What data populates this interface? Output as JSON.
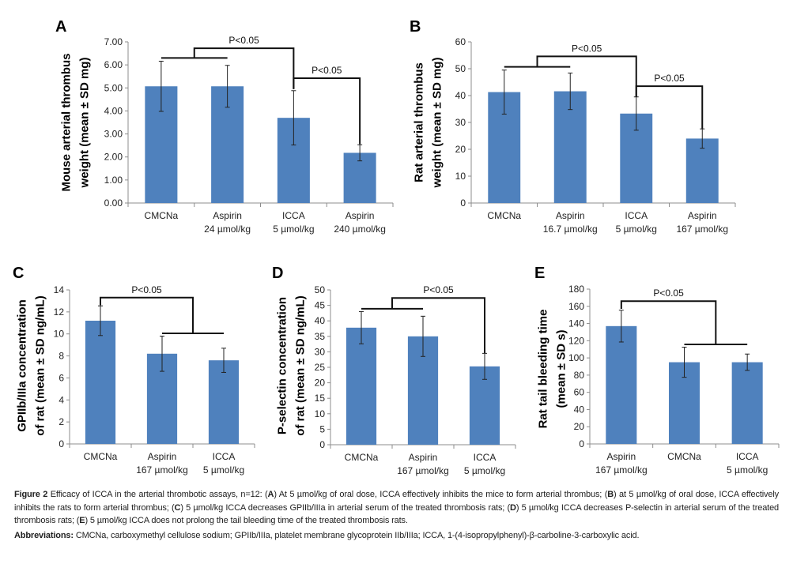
{
  "colors": {
    "bar": "#4f81bd",
    "axis": "#8c8c8c",
    "bracket": "#111111",
    "error": "#222222"
  },
  "chart_data": [
    {
      "panel": "A",
      "type": "bar",
      "ylabel": [
        "Mouse arterial thrombus",
        "weight (mean ± SD mg)"
      ],
      "categories": [
        [
          "CMCNa"
        ],
        [
          "Aspirin",
          "24 µmol/kg"
        ],
        [
          "ICCA",
          "5 µmol/kg"
        ],
        [
          "Aspirin",
          "240 µmol/kg"
        ]
      ],
      "values": [
        5.07,
        5.07,
        3.7,
        2.18
      ],
      "sd": [
        1.09,
        0.91,
        1.18,
        0.35
      ],
      "ylim": [
        0,
        7
      ],
      "yticks": [
        "0.00",
        "1.00",
        "2.00",
        "3.00",
        "4.00",
        "5.00",
        "6.00",
        "7.00"
      ],
      "ystep": 1,
      "brackets": [
        {
          "from": {
            "bars": [
              0,
              1
            ],
            "y": 6.3
          },
          "to": {
            "bars": [
              2
            ],
            "y": 4.95
          },
          "top": 6.72,
          "label": "P<0.05"
        },
        {
          "from": {
            "bars": [
              2
            ],
            "y": 4.95
          },
          "to": {
            "bars": [
              3
            ],
            "y": 2.55
          },
          "top": 5.42,
          "label": "P<0.05"
        }
      ]
    },
    {
      "panel": "B",
      "type": "bar",
      "ylabel": [
        "Rat arterial thrombus",
        "weight (mean ± SD mg)"
      ],
      "categories": [
        [
          "CMCNa"
        ],
        [
          "Aspirin",
          "16.7 µmol/kg"
        ],
        [
          "ICCA",
          "5 µmol/kg"
        ],
        [
          "Aspirin",
          "167 µmol/kg"
        ]
      ],
      "values": [
        41.3,
        41.6,
        33.3,
        24.0
      ],
      "sd": [
        8.2,
        6.8,
        6.2,
        3.6
      ],
      "ylim": [
        0,
        60
      ],
      "yticks": [
        "0",
        "10",
        "20",
        "30",
        "40",
        "50",
        "60"
      ],
      "ystep": 10,
      "brackets": [
        {
          "from": {
            "bars": [
              0,
              1
            ],
            "y": 50.7
          },
          "to": {
            "bars": [
              2
            ],
            "y": 39.6
          },
          "top": 54.6,
          "label": "P<0.05"
        },
        {
          "from": {
            "bars": [
              2
            ],
            "y": 39.6
          },
          "to": {
            "bars": [
              3
            ],
            "y": 27.7
          },
          "top": 43.5,
          "label": "P<0.05"
        }
      ]
    },
    {
      "panel": "C",
      "type": "bar",
      "ylabel": [
        "GPIIb/IIIa concentration",
        "of rat (mean ± SD ng/mL)"
      ],
      "categories": [
        [
          "CMCNa"
        ],
        [
          "Aspirin",
          "167 µmol/kg"
        ],
        [
          "ICCA",
          "5 µmol/kg"
        ]
      ],
      "values": [
        11.2,
        8.2,
        7.6
      ],
      "sd": [
        1.35,
        1.6,
        1.1
      ],
      "ylim": [
        0,
        14
      ],
      "yticks": [
        "0",
        "2",
        "4",
        "6",
        "8",
        "10",
        "12",
        "14"
      ],
      "ystep": 2,
      "brackets": [
        {
          "from": {
            "bars": [
              0
            ],
            "y": 12.6
          },
          "to": {
            "bars": [
              1,
              2
            ],
            "y": 10.05
          },
          "top": 13.3,
          "label": "P<0.05"
        }
      ]
    },
    {
      "panel": "D",
      "type": "bar",
      "ylabel": [
        "P-selectin concentration",
        "of rat (mean ± SD ng/mL)"
      ],
      "categories": [
        [
          "CMCNa"
        ],
        [
          "Aspirin",
          "167 µmol/kg"
        ],
        [
          "ICCA",
          "5 µmol/kg"
        ]
      ],
      "values": [
        37.8,
        35.0,
        25.3
      ],
      "sd": [
        5.2,
        6.5,
        4.2
      ],
      "ylim": [
        0,
        50
      ],
      "yticks": [
        "0",
        "5",
        "10",
        "15",
        "20",
        "25",
        "30",
        "35",
        "40",
        "45",
        "50"
      ],
      "ystep": 5,
      "brackets": [
        {
          "from": {
            "bars": [
              0,
              1
            ],
            "y": 43.9
          },
          "to": {
            "bars": [
              2
            ],
            "y": 29.6
          },
          "top": 47.4,
          "label": "P<0.05"
        }
      ]
    },
    {
      "panel": "E",
      "type": "bar",
      "ylabel": [
        "Rat tail bleeding time",
        "(mean ± SD s)"
      ],
      "categories": [
        [
          "Aspirin",
          "167 µmol/kg"
        ],
        [
          "CMCNa"
        ],
        [
          "ICCA",
          "5 µmol/kg"
        ]
      ],
      "values": [
        137,
        95,
        95
      ],
      "sd": [
        18.5,
        17.5,
        9.5
      ],
      "ylim": [
        0,
        180
      ],
      "yticks": [
        "0",
        "20",
        "40",
        "60",
        "80",
        "100",
        "120",
        "140",
        "160",
        "180"
      ],
      "ystep": 20,
      "brackets": [
        {
          "from": {
            "bars": [
              0
            ],
            "y": 157
          },
          "to": {
            "bars": [
              1,
              2
            ],
            "y": 115.7
          },
          "top": 166,
          "label": "P<0.05"
        }
      ]
    }
  ],
  "caption": {
    "segments": [
      {
        "text": "Figure 2",
        "bold": true
      },
      {
        "text": " Efficacy of ICCA in the arterial thrombotic assays, n=12: (",
        "bold": false
      },
      {
        "text": "A",
        "bold": true
      },
      {
        "text": ") At 5 µmol/kg of oral dose, ICCA effectively inhibits the mice to form arterial thrombus; (",
        "bold": false
      },
      {
        "text": "B",
        "bold": true
      },
      {
        "text": ") at 5 µmol/kg of oral dose, ICCA effectively inhibits the rats to form arterial thrombus; (",
        "bold": false
      },
      {
        "text": "C",
        "bold": true
      },
      {
        "text": ") 5 µmol/kg ICCA decreases GPIIb/IIIa in arterial serum of the treated thrombosis rats; (",
        "bold": false
      },
      {
        "text": "D",
        "bold": true
      },
      {
        "text": ") 5 µmol/kg ICCA decreases P-selectin in arterial serum of the treated thrombosis rats; (",
        "bold": false
      },
      {
        "text": "E",
        "bold": true
      },
      {
        "text": ") 5 µmol/kg ICCA does not prolong the tail bleeding time of the treated thrombosis rats.",
        "bold": false
      }
    ],
    "abbrev_label": "Abbreviations:",
    "abbrev_text": " CMCNa, carboxymethyl cellulose sodium; GPIIb/IIIa, platelet membrane glycoprotein IIb/IIIa; ICCA, 1-(4-isopropylphenyl)-β-carboline-3-carboxylic acid."
  }
}
